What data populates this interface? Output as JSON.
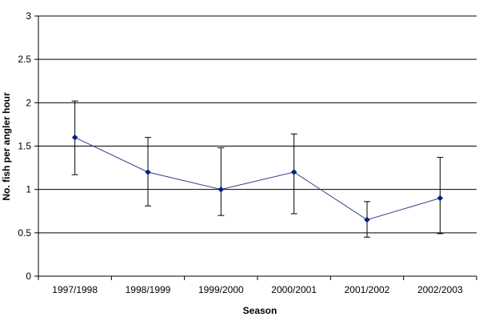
{
  "chart_data": {
    "type": "line",
    "title": "",
    "xlabel": "Season",
    "ylabel": "No. fish per angler hour",
    "categories": [
      "1997/1998",
      "1998/1999",
      "1999/2000",
      "2000/2001",
      "2001/2002",
      "2002/2003"
    ],
    "series": [
      {
        "values": [
          1.6,
          1.2,
          1.0,
          1.2,
          0.65,
          0.9
        ],
        "error_low": [
          1.17,
          0.81,
          0.7,
          0.72,
          0.45,
          0.49
        ],
        "error_high": [
          2.02,
          1.6,
          1.48,
          1.64,
          0.86,
          1.37
        ],
        "color": "#3a3a8c",
        "marker_color": "#00207f"
      }
    ],
    "ylim": [
      0,
      3
    ],
    "yticks": [
      0,
      0.5,
      1,
      1.5,
      2,
      2.5,
      3
    ],
    "ytick_labels": [
      "0",
      "0.5",
      "1",
      "1.5",
      "2",
      "2.5",
      "3"
    ],
    "grid": true,
    "legend": "none"
  }
}
